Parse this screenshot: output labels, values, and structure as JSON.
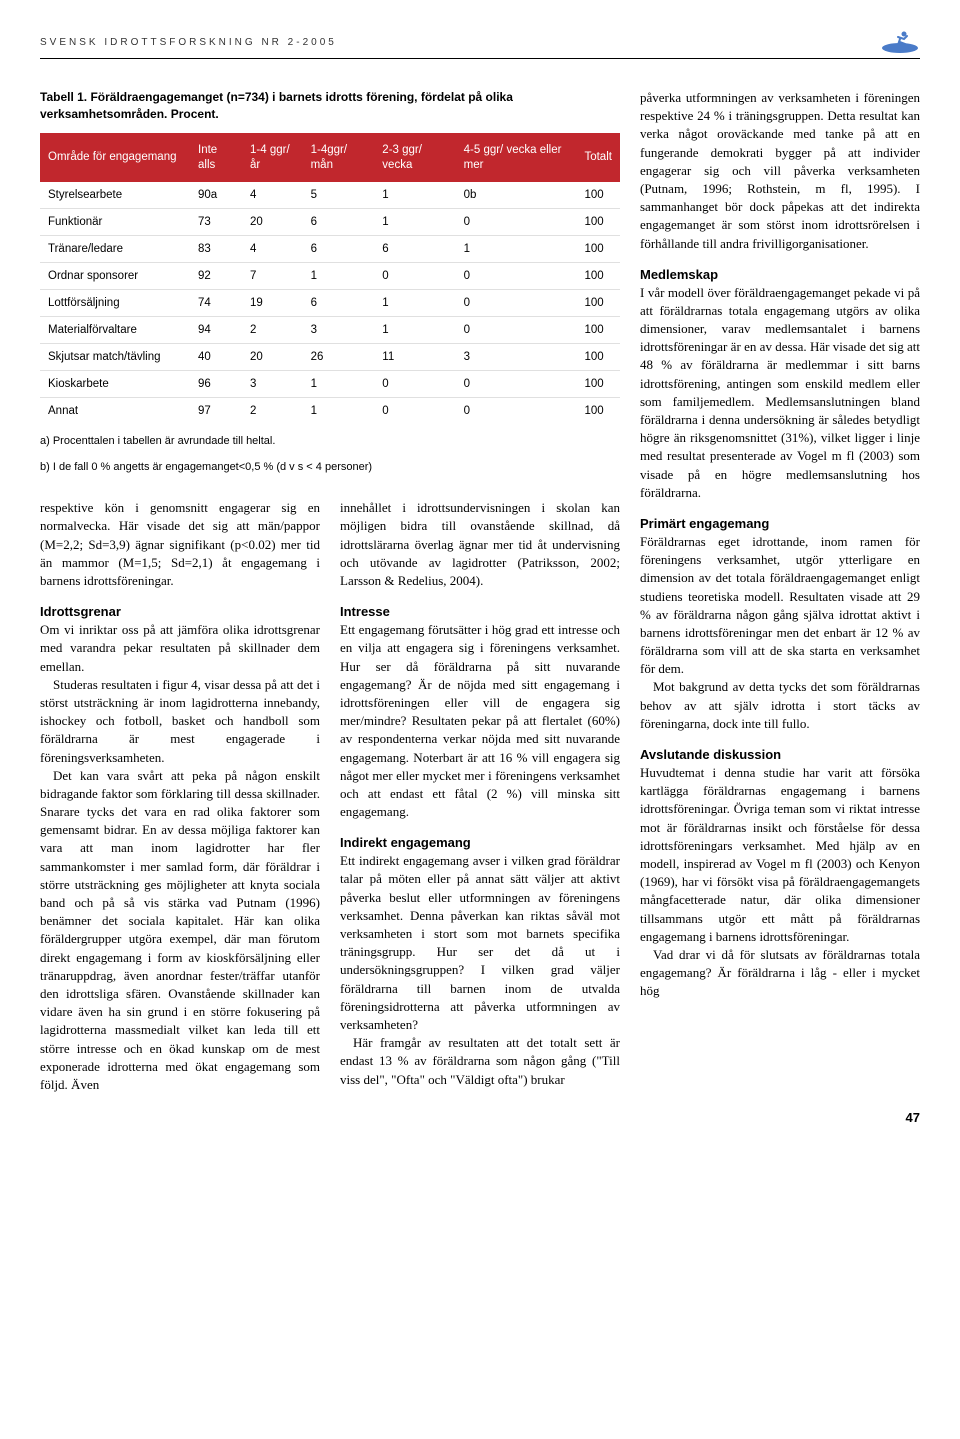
{
  "header": {
    "journal": "SVENSK IDROTTSFORSKNING NR 2-2005"
  },
  "table": {
    "caption": "Tabell 1. Föräldraengagemanget (n=734) i barnets idrotts förening, fördelat på olika verksamhetsområden. Procent.",
    "header_bg": "#c1272d",
    "header_fg": "#ffffff",
    "columns": [
      "Område för engagemang",
      "Inte alls",
      "1-4 ggr/år",
      "1-4ggr/ mån",
      "2-3 ggr/ vecka",
      "4-5 ggr/ vecka eller mer",
      "Totalt"
    ],
    "rows": [
      [
        "Styrelsearbete",
        "90a",
        "4",
        "5",
        "1",
        "0b",
        "100"
      ],
      [
        "Funktionär",
        "73",
        "20",
        "6",
        "1",
        "0",
        "100"
      ],
      [
        "Tränare/ledare",
        "83",
        "4",
        "6",
        "6",
        "1",
        "100"
      ],
      [
        "Ordnar sponsorer",
        "92",
        "7",
        "1",
        "0",
        "0",
        "100"
      ],
      [
        "Lottförsäljning",
        "74",
        "19",
        "6",
        "1",
        "0",
        "100"
      ],
      [
        "Materialförvaltare",
        "94",
        "2",
        "3",
        "1",
        "0",
        "100"
      ],
      [
        "Skjutsar match/tävling",
        "40",
        "20",
        "26",
        "11",
        "3",
        "100"
      ],
      [
        "Kioskarbete",
        "96",
        "3",
        "1",
        "0",
        "0",
        "100"
      ],
      [
        "Annat",
        "97",
        "2",
        "1",
        "0",
        "0",
        "100"
      ]
    ],
    "footnote_a": "a) Procenttalen i tabellen är avrundade till heltal.",
    "footnote_b": "b) I de fall 0 % angetts är engagemanget<0,5 % (d v s < 4 personer)"
  },
  "col1": {
    "p1": "respektive kön i genomsnitt engagerar sig en normalvecka. Här visade det sig att män/pappor (M=2,2; Sd=3,9) ägnar signifikant (p<0.02) mer tid än mammor (M=1,5; Sd=2,1) åt engagemang i barnens idrottsföreningar.",
    "h1": "Idrottsgrenar",
    "p2": "Om vi inriktar oss på att jämföra olika idrottsgrenar med varandra pekar resultaten på skillnader dem emellan.",
    "p3": "Studeras resultaten i figur 4, visar dessa på att det i störst utsträckning är inom lagidrotterna innebandy, ishockey och fotboll, basket och handboll som föräldrarna är mest engagerade i föreningsverksamheten.",
    "p4": "Det kan vara svårt att peka på någon enskilt bidragande faktor som förklaring till dessa skillnader. Snarare tycks det vara en rad olika faktorer som gemensamt bidrar. En av dessa möjliga faktorer kan vara att man inom lagidrotter har fler sammankomster i mer samlad form, där föräldrar i större utsträckning ges möjligheter att knyta sociala band och på så vis stärka vad Putnam (1996) benämner det sociala kapitalet. Här kan olika föräldergrupper utgöra exempel, där man förutom direkt engagemang i form av kioskförsäljning eller tränaruppdrag, även anordnar fester/träffar utanför den idrottsliga sfären. Ovanstående skillnader kan vidare även ha sin grund i en större fokusering på lagidrotterna massmedialt vilket kan leda till ett större intresse och en ökad kunskap om de mest exponerade idrotterna med ökat engagemang som följd. Även"
  },
  "col2": {
    "p1": "innehållet i idrottsundervisningen i skolan kan möjligen bidra till ovanstående skillnad, då idrottslärarna överlag ägnar mer tid åt undervisning och utövande av lagidrotter (Patriksson, 2002; Larsson & Redelius, 2004).",
    "h1": "Intresse",
    "p2": "Ett engagemang förutsätter i hög grad ett intresse och en vilja att engagera sig i föreningens verksamhet. Hur ser då föräldrarna på sitt nuvarande engagemang? Är de nöjda med sitt engagemang i idrottsföreningen eller vill de engagera sig mer/mindre? Resultaten pekar på att flertalet (60%) av respondenterna verkar nöjda med sitt nuvarande engagemang. Noterbart är att 16 % vill engagera sig något mer eller mycket mer i föreningens verksamhet och att endast ett fåtal (2 %) vill minska sitt engagemang.",
    "h2": "Indirekt engagemang",
    "p3": "Ett indirekt engagemang avser i vilken grad föräldrar talar på möten eller på annat sätt väljer att aktivt påverka beslut eller utformningen av föreningens verksamhet. Denna påverkan kan riktas såväl mot verksamheten i stort som mot barnets specifika träningsgrupp. Hur ser det då ut i undersökningsgruppen? I vilken grad väljer föräldrarna till barnen inom de utvalda föreningsidrotterna att påverka utformningen av verksamheten?",
    "p4": "Här framgår av resultaten att det totalt sett är endast 13 % av föräldrarna som någon gång (\"Till viss del\", \"Ofta\" och \"Väldigt ofta\") brukar"
  },
  "col3": {
    "p1": "påverka utformningen av verksamheten i föreningen respektive 24 % i träningsgruppen. Detta resultat kan verka något oroväckande med tanke på att en fungerande demokrati bygger på att individer engagerar sig och vill påverka verksamheten (Putnam, 1996; Rothstein, m fl, 1995). I sammanhanget bör dock påpekas att det indirekta engagemanget är som störst inom idrottsrörelsen i förhållande till andra frivilligorganisationer.",
    "h1": "Medlemskap",
    "p2": "I vår modell över föräldraengagemanget pekade vi på att föräldrarnas totala engagemang utgörs av olika dimensioner, varav medlemsantalet i barnens idrottsföreningar är en av dessa. Här visade det sig att 48 % av föräldrarna är medlemmar i sitt barns idrottsförening, antingen som enskild medlem eller som familjemedlem. Medlemsanslutningen bland föräldrarna i denna undersökning är således betydligt högre än riksgenomsnittet (31%), vilket ligger i linje med resultat presenterade av Vogel m fl (2003) som visade på en högre medlemsanslutning hos föräldrarna.",
    "h2": "Primärt engagemang",
    "p3": "Föräldrarnas eget idrottande, inom ramen för föreningens verksamhet, utgör ytterligare en dimension av det totala föräldraengagemanget enligt studiens teoretiska modell. Resultaten visade att 29 % av föräldrarna någon gång själva idrottat aktivt i barnens idrottsföreningar men det enbart är 12 % av föräldrarna som vill att de ska starta en verksamhet för dem.",
    "p4": "Mot bakgrund av detta tycks det som föräldrarnas behov av att själv idrotta i stort täcks av föreningarna, dock inte till fullo.",
    "h3": "Avslutande diskussion",
    "p5": "Huvudtemat i denna studie har varit att försöka kartlägga föräldrarnas engagemang i barnens idrottsföreningar. Övriga teman som vi riktat intresse mot är föräldrarnas insikt och förståelse för dessa idrottsföreningars verksamhet. Med hjälp av en modell, inspirerad av Vogel m fl (2003) och Kenyon (1969), har vi försökt visa på föräldraengagemangets mångfacetterade natur, där olika dimensioner tillsammans utgör ett mått på föräldrarnas engagemang i barnens idrottsföreningar.",
    "p6": "Vad drar vi då för slutsats av föräldrarnas totala engagemang? Är föräldrarna i låg - eller i mycket hög"
  },
  "page_number": "47"
}
